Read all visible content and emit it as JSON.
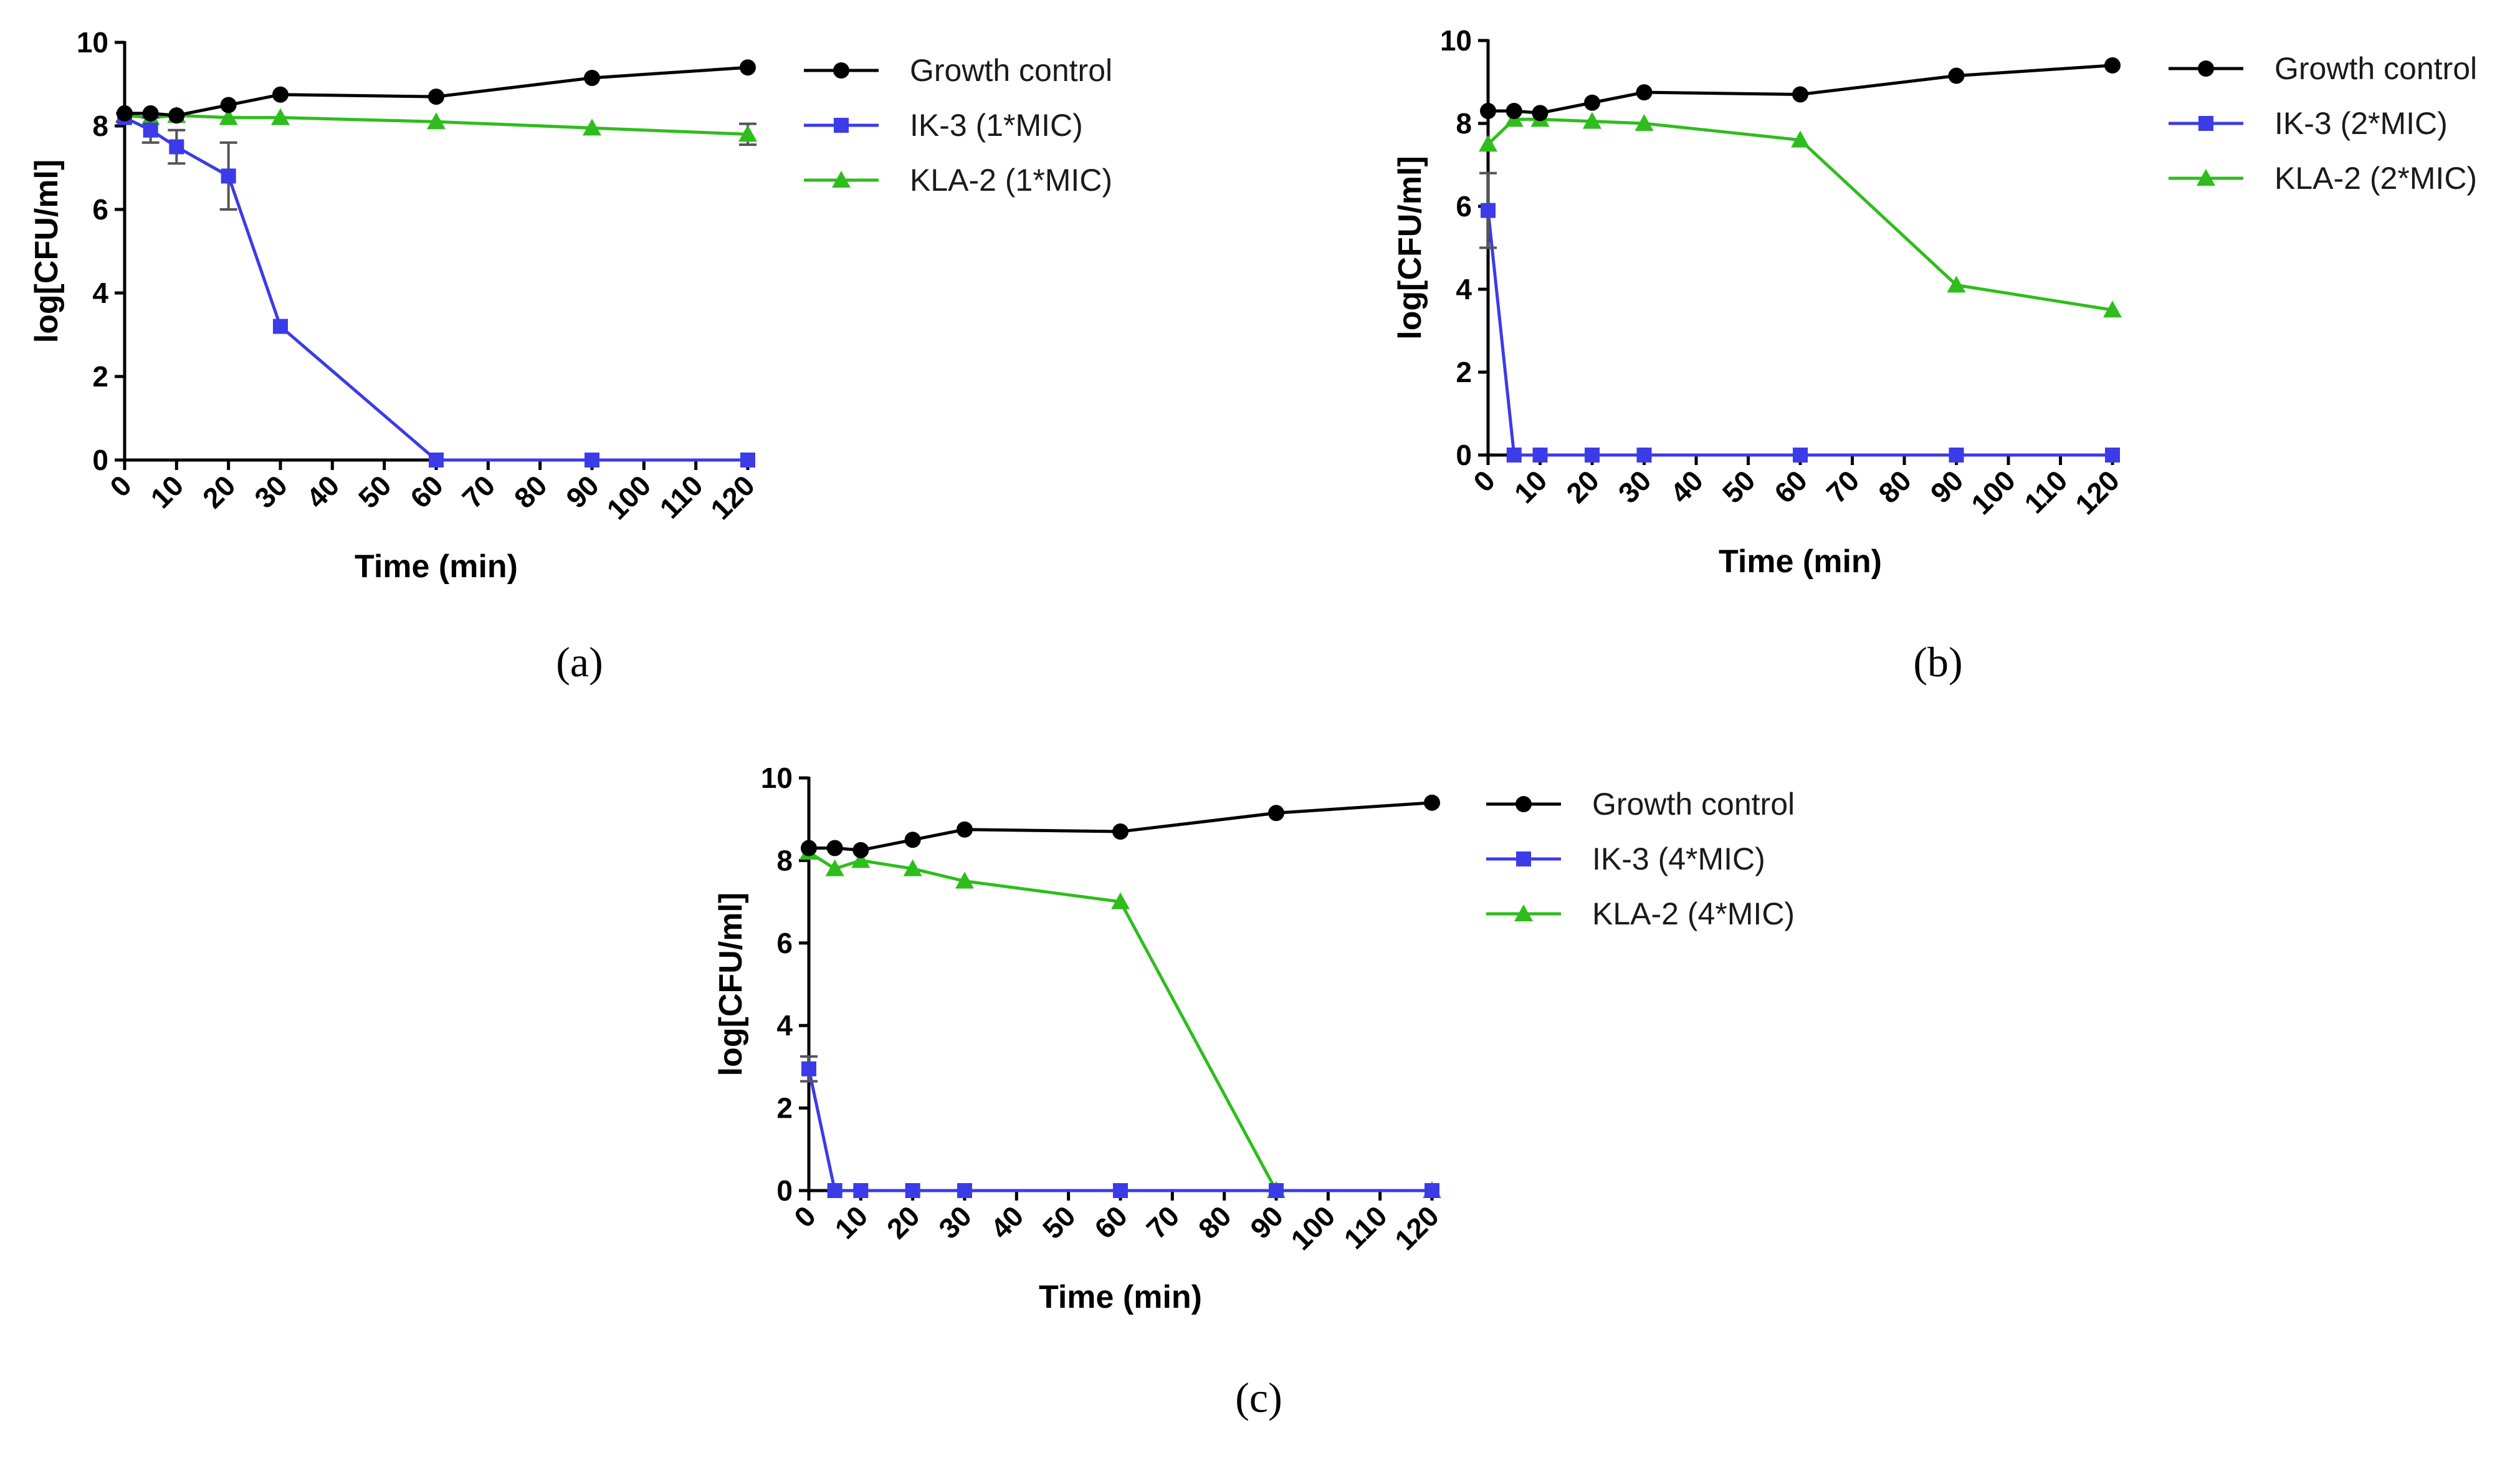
{
  "figure": {
    "colors": {
      "growth": "#000000",
      "ik3": "#3b3be8",
      "kla2": "#2ebd1c",
      "axis": "#000000"
    },
    "x_ticks": [
      0,
      10,
      20,
      30,
      40,
      50,
      60,
      70,
      80,
      90,
      100,
      110,
      120
    ],
    "y_ticks": [
      0,
      2,
      4,
      6,
      8,
      10
    ]
  },
  "chart_data": [
    {
      "type": "line",
      "panel_label": "(a)",
      "title": "",
      "xlabel": "Time (min)",
      "ylabel": "log[CFU/ml]",
      "xlim": [
        0,
        120
      ],
      "ylim": [
        0,
        10
      ],
      "legend_position": "right",
      "series": [
        {
          "name": "Growth control",
          "key": "growth",
          "marker": "circle",
          "x": [
            0,
            5,
            10,
            20,
            30,
            60,
            90,
            120
          ],
          "y": [
            8.3,
            8.3,
            8.25,
            8.5,
            8.75,
            8.7,
            9.15,
            9.4
          ]
        },
        {
          "name": "IK-3 (1*MIC)",
          "key": "ik3",
          "marker": "square",
          "x": [
            0,
            5,
            10,
            20,
            30,
            60,
            90,
            120
          ],
          "y": [
            8.2,
            7.9,
            7.5,
            6.8,
            3.2,
            0,
            0,
            0
          ],
          "err": [
            0.1,
            0.3,
            0.4,
            0.8,
            0,
            0,
            0,
            0
          ]
        },
        {
          "name": "KLA-2 (1*MIC)",
          "key": "kla2",
          "marker": "triangle",
          "x": [
            0,
            5,
            10,
            20,
            30,
            60,
            90,
            120
          ],
          "y": [
            8.25,
            8.2,
            8.25,
            8.2,
            8.2,
            8.1,
            7.95,
            7.8
          ],
          "err": [
            0,
            0,
            0,
            0,
            0,
            0,
            0,
            0.25
          ]
        }
      ]
    },
    {
      "type": "line",
      "panel_label": "(b)",
      "title": "",
      "xlabel": "Time (min)",
      "ylabel": "log[CFU/ml]",
      "xlim": [
        0,
        120
      ],
      "ylim": [
        0,
        10
      ],
      "legend_position": "right",
      "series": [
        {
          "name": "Growth control",
          "key": "growth",
          "marker": "circle",
          "x": [
            0,
            5,
            10,
            20,
            30,
            60,
            90,
            120
          ],
          "y": [
            8.3,
            8.3,
            8.25,
            8.5,
            8.75,
            8.7,
            9.15,
            9.4
          ]
        },
        {
          "name": "IK-3 (2*MIC)",
          "key": "ik3",
          "marker": "square",
          "x": [
            0,
            5,
            10,
            20,
            30,
            60,
            90,
            120
          ],
          "y": [
            5.9,
            0,
            0,
            0,
            0,
            0,
            0,
            0
          ],
          "err": [
            0.9,
            0,
            0,
            0,
            0,
            0,
            0,
            0
          ]
        },
        {
          "name": "KLA-2 (2*MIC)",
          "key": "kla2",
          "marker": "triangle",
          "x": [
            0,
            5,
            10,
            20,
            30,
            60,
            90,
            120
          ],
          "y": [
            7.5,
            8.1,
            8.1,
            8.05,
            8.0,
            7.6,
            4.1,
            3.5
          ],
          "err": [
            0,
            0,
            0,
            0,
            0,
            0,
            0,
            0
          ]
        }
      ]
    },
    {
      "type": "line",
      "panel_label": "(c)",
      "title": "",
      "xlabel": "Time (min)",
      "ylabel": "log[CFU/ml]",
      "xlim": [
        0,
        120
      ],
      "ylim": [
        0,
        10
      ],
      "legend_position": "right",
      "series": [
        {
          "name": "Growth control",
          "key": "growth",
          "marker": "circle",
          "x": [
            0,
            5,
            10,
            20,
            30,
            60,
            90,
            120
          ],
          "y": [
            8.3,
            8.3,
            8.25,
            8.5,
            8.75,
            8.7,
            9.15,
            9.4
          ]
        },
        {
          "name": "IK-3 (4*MIC)",
          "key": "ik3",
          "marker": "square",
          "x": [
            0,
            5,
            10,
            20,
            30,
            60,
            90,
            120
          ],
          "y": [
            2.95,
            0,
            0,
            0,
            0,
            0,
            0,
            0
          ],
          "err": [
            0.3,
            0,
            0,
            0,
            0,
            0,
            0,
            0
          ]
        },
        {
          "name": "KLA-2 (4*MIC)",
          "key": "kla2",
          "marker": "triangle",
          "x": [
            0,
            5,
            10,
            20,
            30,
            60,
            90,
            120
          ],
          "y": [
            8.2,
            7.8,
            8.0,
            7.8,
            7.5,
            7.0,
            0,
            0
          ],
          "err": [
            0,
            0,
            0,
            0,
            0,
            0,
            0,
            0
          ]
        }
      ]
    }
  ]
}
